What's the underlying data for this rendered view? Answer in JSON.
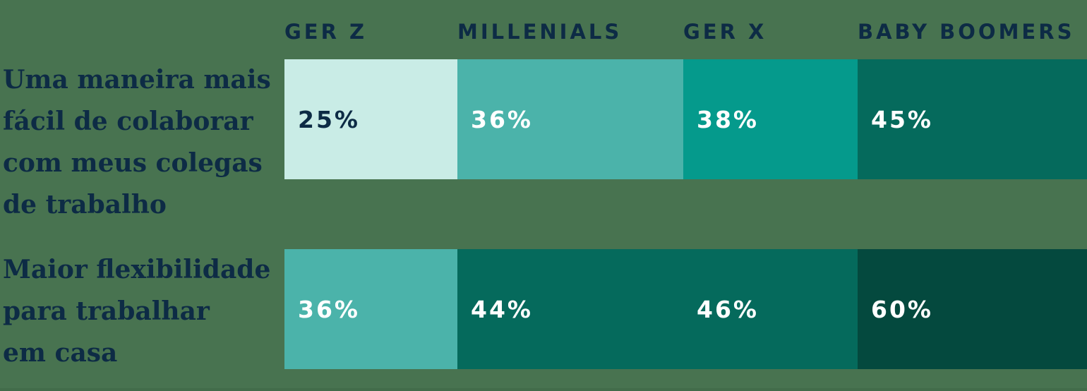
{
  "colors": {
    "background": "#487350",
    "footer_strip": "#426C4A",
    "navy_text": "#0D2B45",
    "white_text": "#FFFFFF",
    "mint": "#C9ECE6",
    "medium_teal": "#4BB3AA",
    "teal": "#059A8C",
    "dark_teal": "#056A5C",
    "darkest_green": "#04493E"
  },
  "columns": [
    {
      "label": "GER Z"
    },
    {
      "label": "MILLENIALS"
    },
    {
      "label": "GER X"
    },
    {
      "label": "BABY BOOMERS"
    }
  ],
  "rows": [
    {
      "label": "Uma maneira mais fácil de colaborar com meus colegas de trabalho",
      "label_lines": [
        "Uma maneira mais",
        "fácil de colaborar",
        "com meus colegas",
        "de trabalho"
      ],
      "cells": [
        {
          "value": "25%",
          "bg": "#C9ECE6",
          "text_color": "#0D2B45"
        },
        {
          "value": "36%",
          "bg": "#4BB3AA",
          "text_color": "#FFFFFF"
        },
        {
          "value": "38%",
          "bg": "#059A8C",
          "text_color": "#FFFFFF"
        },
        {
          "value": "45%",
          "bg": "#056A5C",
          "text_color": "#FFFFFF"
        }
      ]
    },
    {
      "label": "Maior flexibilidade para trabalhar em casa",
      "label_lines": [
        "Maior flexibilidade",
        "para trabalhar",
        "em casa"
      ],
      "cells": [
        {
          "value": "36%",
          "bg": "#4BB3AA",
          "text_color": "#FFFFFF"
        },
        {
          "value": "44%",
          "bg": "#056A5C",
          "text_color": "#FFFFFF"
        },
        {
          "value": "46%",
          "bg": "#056A5C",
          "text_color": "#FFFFFF"
        },
        {
          "value": "60%",
          "bg": "#04493E",
          "text_color": "#FFFFFF"
        }
      ]
    }
  ],
  "chart_data": {
    "type": "heatmap",
    "categories": [
      "GER Z",
      "MILLENIALS",
      "GER X",
      "BABY BOOMERS"
    ],
    "series": [
      {
        "name": "Uma maneira mais fácil de colaborar com meus colegas de trabalho",
        "values": [
          25,
          36,
          38,
          45
        ]
      },
      {
        "name": "Maior flexibilidade para trabalhar em casa",
        "values": [
          36,
          44,
          46,
          60
        ]
      }
    ],
    "value_format": "percent",
    "title": "",
    "xlabel": "",
    "ylabel": "",
    "legend_position": "none",
    "grid": false,
    "color_scale": [
      "#C9ECE6",
      "#4BB3AA",
      "#059A8C",
      "#056A5C",
      "#04493E"
    ]
  }
}
